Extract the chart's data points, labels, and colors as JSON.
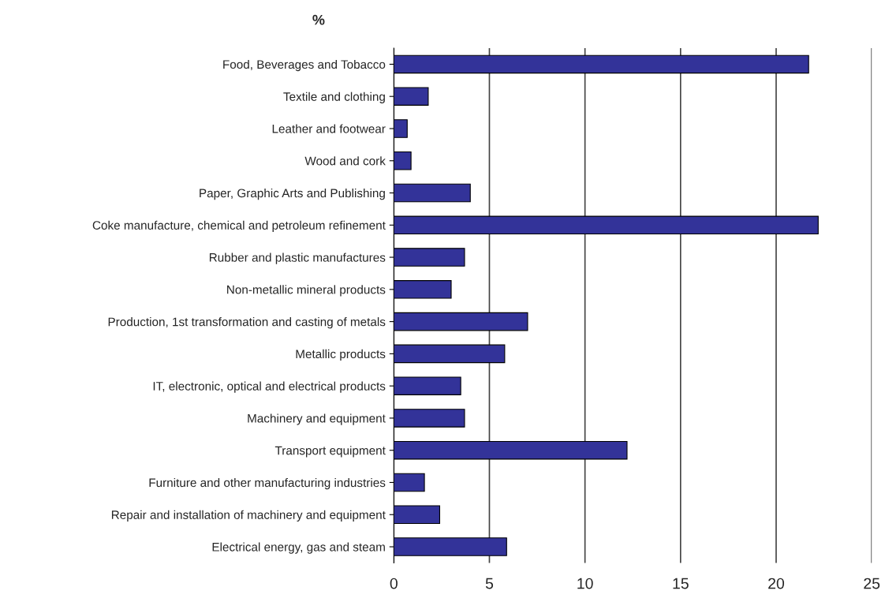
{
  "chart_data": {
    "type": "bar",
    "orientation": "horizontal",
    "title": "%",
    "categories": [
      "Food, Beverages and Tobacco",
      "Textile and clothing",
      "Leather and footwear",
      "Wood and cork",
      "Paper, Graphic Arts and Publishing",
      "Coke manufacture, chemical and petroleum refinement",
      "Rubber and plastic manufactures",
      "Non-metallic mineral products",
      "Production, 1st transformation and casting of metals",
      "Metallic products",
      "IT, electronic, optical and electrical products",
      "Machinery and equipment",
      "Transport equipment",
      "Furniture and other manufacturing industries",
      "Repair and installation of machinery and equipment",
      "Electrical energy, gas and steam"
    ],
    "values": [
      21.7,
      1.8,
      0.7,
      0.9,
      4.0,
      22.2,
      3.7,
      3.0,
      7.0,
      5.8,
      3.5,
      3.7,
      12.2,
      1.6,
      2.4,
      5.9
    ],
    "color": "#333399",
    "xlim": [
      0,
      25
    ],
    "xticks": [
      0,
      5,
      10,
      15,
      20,
      25
    ],
    "grid": "x"
  }
}
